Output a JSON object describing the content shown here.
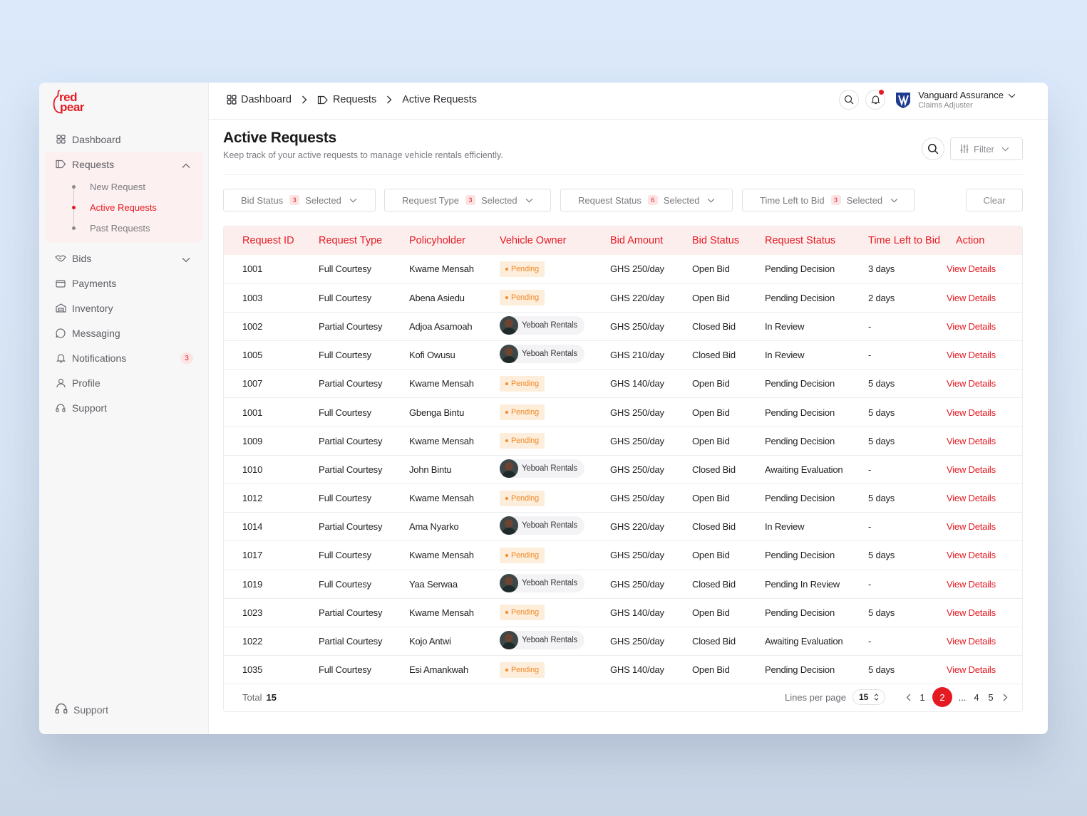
{
  "brand": {
    "line1": "red",
    "line2": "pear"
  },
  "sidebar": {
    "items": [
      {
        "label": "Dashboard",
        "icon": "grid-icon"
      },
      {
        "label": "Requests",
        "icon": "tag-icon"
      },
      {
        "label": "Bids",
        "icon": "handshake-icon"
      },
      {
        "label": "Payments",
        "icon": "wallet-icon"
      },
      {
        "label": "Inventory",
        "icon": "warehouse-icon"
      },
      {
        "label": "Messaging",
        "icon": "chat-icon"
      },
      {
        "label": "Notifications",
        "icon": "bell-icon",
        "badge": "3"
      },
      {
        "label": "Profile",
        "icon": "user-icon"
      },
      {
        "label": "Support",
        "icon": "headset-icon"
      }
    ],
    "sub_items": [
      "New Request",
      "Active Requests",
      "Past Requests"
    ],
    "bottom_support": "Support"
  },
  "breadcrumb": [
    "Dashboard",
    "Requests",
    "Active Requests"
  ],
  "user": {
    "name": "Vanguard Assurance",
    "role": "Claims Adjuster"
  },
  "page": {
    "title": "Active Requests",
    "subtitle": "Keep track of your active requests to manage vehicle rentals efficiently.",
    "filter_label": "Filter",
    "clear_label": "Clear"
  },
  "filters": [
    {
      "label": "Bid Status",
      "count": "3",
      "suffix": "Selected"
    },
    {
      "label": "Request Type",
      "count": "3",
      "suffix": "Selected"
    },
    {
      "label": "Request Status",
      "count": "6",
      "suffix": "Selected"
    },
    {
      "label": "Time Left to Bid",
      "count": "3",
      "suffix": "Selected"
    }
  ],
  "table": {
    "headers": [
      "Request ID",
      "Request Type",
      "Policyholder",
      "Vehicle Owner",
      "Bid Amount",
      "Bid Status",
      "Request Status",
      "Time Left to Bid",
      "Action"
    ],
    "action_label": "View Details",
    "rows": [
      {
        "id": "1001",
        "type": "Full Courtesy",
        "holder": "Kwame Mensah",
        "owner": "Pending",
        "amount": "GHS 250/day",
        "bid": "Open Bid",
        "status": "Pending Decision",
        "time": "3 days"
      },
      {
        "id": "1003",
        "type": "Full Courtesy",
        "holder": "Abena Asiedu",
        "owner": "Pending",
        "amount": "GHS 220/day",
        "bid": "Open Bid",
        "status": "Pending Decision",
        "time": "2 days"
      },
      {
        "id": "1002",
        "type": "Partial Courtesy",
        "holder": "Adjoa Asamoah",
        "owner": "Yeboah Rentals",
        "amount": "GHS 250/day",
        "bid": "Closed Bid",
        "status": "In Review",
        "time": "-"
      },
      {
        "id": "1005",
        "type": "Full Courtesy",
        "holder": "Kofi Owusu",
        "owner": "Yeboah Rentals",
        "amount": "GHS 210/day",
        "bid": "Closed Bid",
        "status": "In Review",
        "time": "-"
      },
      {
        "id": "1007",
        "type": "Partial Courtesy",
        "holder": "Kwame Mensah",
        "owner": "Pending",
        "amount": "GHS 140/day",
        "bid": "Open Bid",
        "status": "Pending Decision",
        "time": "5 days"
      },
      {
        "id": "1001",
        "type": "Full Courtesy",
        "holder": "Gbenga Bintu",
        "owner": "Pending",
        "amount": "GHS 250/day",
        "bid": "Open Bid",
        "status": "Pending Decision",
        "time": "5 days"
      },
      {
        "id": "1009",
        "type": "Partial Courtesy",
        "holder": "Kwame Mensah",
        "owner": "Pending",
        "amount": "GHS 250/day",
        "bid": "Open Bid",
        "status": "Pending Decision",
        "time": "5 days"
      },
      {
        "id": "1010",
        "type": "Partial Courtesy",
        "holder": "John Bintu",
        "owner": "Yeboah Rentals",
        "amount": "GHS 250/day",
        "bid": "Closed Bid",
        "status": "Awaiting Evaluation",
        "time": "-"
      },
      {
        "id": "1012",
        "type": "Full Courtesy",
        "holder": "Kwame Mensah",
        "owner": "Pending",
        "amount": "GHS 250/day",
        "bid": "Open Bid",
        "status": "Pending Decision",
        "time": "5 days"
      },
      {
        "id": "1014",
        "type": "Partial Courtesy",
        "holder": "Ama Nyarko",
        "owner": "Yeboah Rentals",
        "amount": "GHS 220/day",
        "bid": "Closed Bid",
        "status": "In Review",
        "time": "-"
      },
      {
        "id": "1017",
        "type": "Full Courtesy",
        "holder": "Kwame Mensah",
        "owner": "Pending",
        "amount": "GHS 250/day",
        "bid": "Open Bid",
        "status": "Pending Decision",
        "time": "5 days"
      },
      {
        "id": "1019",
        "type": "Full Courtesy",
        "holder": "Yaa Serwaa",
        "owner": "Yeboah Rentals",
        "amount": "GHS 250/day",
        "bid": "Closed Bid",
        "status": "Pending In Review",
        "time": "-"
      },
      {
        "id": "1023",
        "type": "Partial Courtesy",
        "holder": "Kwame Mensah",
        "owner": "Pending",
        "amount": "GHS 140/day",
        "bid": "Open Bid",
        "status": "Pending Decision",
        "time": "5 days"
      },
      {
        "id": "1022",
        "type": "Partial Courtesy",
        "holder": "Kojo Antwi",
        "owner": "Yeboah Rentals",
        "amount": "GHS 250/day",
        "bid": "Closed Bid",
        "status": "Awaiting Evaluation",
        "time": "-"
      },
      {
        "id": "1035",
        "type": "Full Courtesy",
        "holder": "Esi Amankwah",
        "owner": "Pending",
        "amount": "GHS 140/day",
        "bid": "Open Bid",
        "status": "Pending Decision",
        "time": "5 days"
      }
    ]
  },
  "footer": {
    "total_label": "Total",
    "total_value": "15",
    "lines_label": "Lines per page",
    "lines_value": "15",
    "pages": [
      "1",
      "2",
      "...",
      "4",
      "5"
    ],
    "current_page": "2"
  },
  "colors": {
    "accent": "#e51b23",
    "pending": "#f08a2a"
  }
}
